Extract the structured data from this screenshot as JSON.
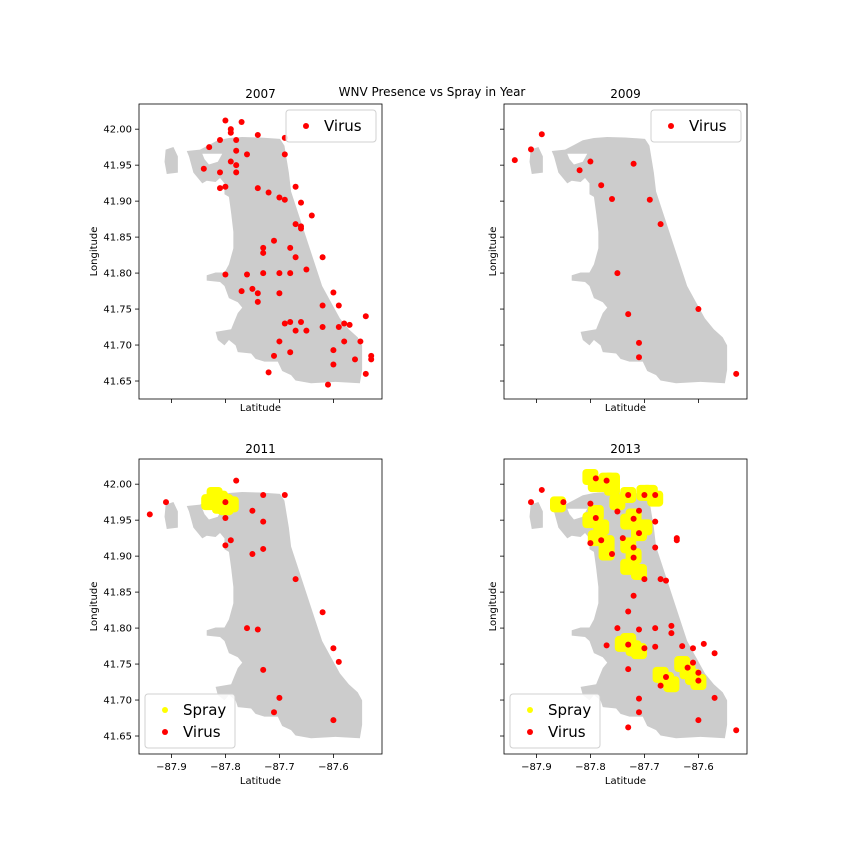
{
  "figure_title": "WNV Presence vs Spray in Year",
  "colors": {
    "land": "#cccccc",
    "virus": "#ff0000",
    "spray": "#ffff00",
    "frame": "#000000"
  },
  "chart_data": [
    {
      "type": "scatter",
      "title": "2007",
      "xlabel": "Latitude",
      "ylabel": "Longitude",
      "xlim": [
        -87.96,
        -87.51
      ],
      "ylim": [
        41.625,
        42.035
      ],
      "x_ticks": [],
      "y_ticks": [
        "42.00",
        "41.95",
        "41.90",
        "41.85",
        "41.80",
        "41.75",
        "41.70",
        "41.65"
      ],
      "legend": {
        "placement": "top-right",
        "entries": [
          "Virus"
        ]
      },
      "series": [
        {
          "name": "Virus",
          "color": "#ff0000",
          "points": [
            [
              -87.8,
              42.012
            ],
            [
              -87.77,
              42.01
            ],
            [
              -87.79,
              42.0
            ],
            [
              -87.79,
              41.995
            ],
            [
              -87.81,
              41.985
            ],
            [
              -87.83,
              41.975
            ],
            [
              -87.78,
              41.985
            ],
            [
              -87.74,
              41.992
            ],
            [
              -87.69,
              41.988
            ],
            [
              -87.78,
              41.97
            ],
            [
              -87.76,
              41.965
            ],
            [
              -87.69,
              41.965
            ],
            [
              -87.79,
              41.955
            ],
            [
              -87.78,
              41.95
            ],
            [
              -87.84,
              41.945
            ],
            [
              -87.81,
              41.94
            ],
            [
              -87.78,
              41.94
            ],
            [
              -87.8,
              41.92
            ],
            [
              -87.81,
              41.918
            ],
            [
              -87.67,
              41.92
            ],
            [
              -87.74,
              41.918
            ],
            [
              -87.72,
              41.912
            ],
            [
              -87.7,
              41.905
            ],
            [
              -87.69,
              41.902
            ],
            [
              -87.66,
              41.898
            ],
            [
              -87.64,
              41.88
            ],
            [
              -87.67,
              41.868
            ],
            [
              -87.66,
              41.865
            ],
            [
              -87.66,
              41.862
            ],
            [
              -87.71,
              41.845
            ],
            [
              -87.73,
              41.835
            ],
            [
              -87.73,
              41.828
            ],
            [
              -87.68,
              41.835
            ],
            [
              -87.67,
              41.822
            ],
            [
              -87.62,
              41.822
            ],
            [
              -87.65,
              41.805
            ],
            [
              -87.68,
              41.8
            ],
            [
              -87.7,
              41.8
            ],
            [
              -87.73,
              41.8
            ],
            [
              -87.76,
              41.798
            ],
            [
              -87.8,
              41.798
            ],
            [
              -87.75,
              41.778
            ],
            [
              -87.74,
              41.772
            ],
            [
              -87.7,
              41.772
            ],
            [
              -87.77,
              41.775
            ],
            [
              -87.74,
              41.76
            ],
            [
              -87.6,
              41.773
            ],
            [
              -87.62,
              41.755
            ],
            [
              -87.59,
              41.755
            ],
            [
              -87.54,
              41.74
            ],
            [
              -87.66,
              41.732
            ],
            [
              -87.68,
              41.732
            ],
            [
              -87.69,
              41.73
            ],
            [
              -87.62,
              41.725
            ],
            [
              -87.59,
              41.725
            ],
            [
              -87.58,
              41.73
            ],
            [
              -87.57,
              41.728
            ],
            [
              -87.67,
              41.72
            ],
            [
              -87.65,
              41.72
            ],
            [
              -87.55,
              41.705
            ],
            [
              -87.58,
              41.705
            ],
            [
              -87.7,
              41.705
            ],
            [
              -87.6,
              41.693
            ],
            [
              -87.68,
              41.69
            ],
            [
              -87.71,
              41.685
            ],
            [
              -87.53,
              41.685
            ],
            [
              -87.53,
              41.68
            ],
            [
              -87.56,
              41.68
            ],
            [
              -87.6,
              41.673
            ],
            [
              -87.72,
              41.662
            ],
            [
              -87.54,
              41.66
            ],
            [
              -87.61,
              41.645
            ]
          ]
        }
      ]
    },
    {
      "type": "scatter",
      "title": "2009",
      "xlabel": "Latitude",
      "ylabel": "Longitude",
      "xlim": [
        -87.96,
        -87.51
      ],
      "ylim": [
        41.625,
        42.035
      ],
      "x_ticks": [],
      "y_ticks": [],
      "legend": {
        "placement": "top-right",
        "entries": [
          "Virus"
        ]
      },
      "series": [
        {
          "name": "Virus",
          "color": "#ff0000",
          "points": [
            [
              -87.89,
              41.993
            ],
            [
              -87.91,
              41.972
            ],
            [
              -87.94,
              41.957
            ],
            [
              -87.8,
              41.955
            ],
            [
              -87.82,
              41.943
            ],
            [
              -87.72,
              41.952
            ],
            [
              -87.78,
              41.922
            ],
            [
              -87.76,
              41.903
            ],
            [
              -87.69,
              41.902
            ],
            [
              -87.67,
              41.868
            ],
            [
              -87.75,
              41.8
            ],
            [
              -87.73,
              41.743
            ],
            [
              -87.6,
              41.75
            ],
            [
              -87.71,
              41.703
            ],
            [
              -87.71,
              41.683
            ],
            [
              -87.53,
              41.66
            ]
          ]
        }
      ]
    },
    {
      "type": "scatter",
      "title": "2011",
      "xlabel": "Latitude",
      "ylabel": "Longitude",
      "xlim": [
        -87.96,
        -87.51
      ],
      "ylim": [
        41.625,
        42.035
      ],
      "x_ticks": [
        "−87.9",
        "−87.8",
        "−87.7",
        "−87.6"
      ],
      "y_ticks": [
        "42.00",
        "41.95",
        "41.90",
        "41.85",
        "41.80",
        "41.75",
        "41.70",
        "41.65"
      ],
      "legend": {
        "placement": "bottom-left",
        "entries": [
          "Spray",
          "Virus"
        ]
      },
      "series": [
        {
          "name": "Spray",
          "color": "#ffff00",
          "points": [
            [
              -87.82,
              41.985
            ],
            [
              -87.81,
              41.98
            ],
            [
              -87.8,
              41.975
            ],
            [
              -87.79,
              41.972
            ],
            [
              -87.8,
              41.968
            ],
            [
              -87.81,
              41.97
            ],
            [
              -87.83,
              41.975
            ]
          ]
        },
        {
          "name": "Virus",
          "color": "#ff0000",
          "points": [
            [
              -87.78,
              42.005
            ],
            [
              -87.94,
              41.958
            ],
            [
              -87.91,
              41.975
            ],
            [
              -87.8,
              41.975
            ],
            [
              -87.73,
              41.985
            ],
            [
              -87.69,
              41.985
            ],
            [
              -87.75,
              41.963
            ],
            [
              -87.8,
              41.953
            ],
            [
              -87.73,
              41.948
            ],
            [
              -87.79,
              41.922
            ],
            [
              -87.8,
              41.915
            ],
            [
              -87.73,
              41.91
            ],
            [
              -87.75,
              41.903
            ],
            [
              -87.67,
              41.868
            ],
            [
              -87.62,
              41.822
            ],
            [
              -87.76,
              41.8
            ],
            [
              -87.74,
              41.798
            ],
            [
              -87.6,
              41.772
            ],
            [
              -87.59,
              41.753
            ],
            [
              -87.73,
              41.742
            ],
            [
              -87.7,
              41.703
            ],
            [
              -87.71,
              41.683
            ],
            [
              -87.6,
              41.672
            ]
          ]
        }
      ]
    },
    {
      "type": "scatter",
      "title": "2013",
      "xlabel": "Latitude",
      "ylabel": "Longitude",
      "xlim": [
        -87.96,
        -87.51
      ],
      "ylim": [
        41.625,
        42.035
      ],
      "x_ticks": [
        "−87.9",
        "−87.8",
        "−87.7",
        "−87.6"
      ],
      "y_ticks": [],
      "legend": {
        "placement": "bottom-left",
        "entries": [
          "Spray",
          "Virus"
        ]
      },
      "series": [
        {
          "name": "Spray",
          "color": "#ffff00",
          "points": [
            [
              -87.8,
              42.01
            ],
            [
              -87.79,
              42.0
            ],
            [
              -87.78,
              42.0
            ],
            [
              -87.77,
              42.005
            ],
            [
              -87.76,
              42.005
            ],
            [
              -87.76,
              41.995
            ],
            [
              -87.7,
              41.988
            ],
            [
              -87.69,
              41.988
            ],
            [
              -87.68,
              41.98
            ],
            [
              -87.73,
              41.985
            ],
            [
              -87.75,
              41.975
            ],
            [
              -87.72,
              41.955
            ],
            [
              -87.73,
              41.948
            ],
            [
              -87.7,
              41.94
            ],
            [
              -87.71,
              41.932
            ],
            [
              -87.79,
              41.96
            ],
            [
              -87.8,
              41.95
            ],
            [
              -87.78,
              41.94
            ],
            [
              -87.79,
              41.925
            ],
            [
              -87.77,
              41.918
            ],
            [
              -87.77,
              41.905
            ],
            [
              -87.73,
              41.915
            ],
            [
              -87.72,
              41.9
            ],
            [
              -87.73,
              41.885
            ],
            [
              -87.71,
              41.878
            ],
            [
              -87.86,
              41.972
            ],
            [
              -87.74,
              41.778
            ],
            [
              -87.72,
              41.772
            ],
            [
              -87.71,
              41.768
            ],
            [
              -87.73,
              41.782
            ],
            [
              -87.67,
              41.735
            ],
            [
              -87.66,
              41.728
            ],
            [
              -87.65,
              41.722
            ],
            [
              -87.63,
              41.75
            ],
            [
              -87.62,
              41.74
            ],
            [
              -87.61,
              41.732
            ],
            [
              -87.6,
              41.725
            ]
          ]
        },
        {
          "name": "Virus",
          "color": "#ff0000",
          "points": [
            [
              -87.79,
              42.008
            ],
            [
              -87.77,
              42.005
            ],
            [
              -87.89,
              41.992
            ],
            [
              -87.91,
              41.975
            ],
            [
              -87.85,
              41.975
            ],
            [
              -87.8,
              41.973
            ],
            [
              -87.73,
              41.985
            ],
            [
              -87.7,
              41.985
            ],
            [
              -87.68,
              41.985
            ],
            [
              -87.75,
              41.962
            ],
            [
              -87.71,
              41.963
            ],
            [
              -87.79,
              41.953
            ],
            [
              -87.72,
              41.952
            ],
            [
              -87.68,
              41.948
            ],
            [
              -87.71,
              41.932
            ],
            [
              -87.78,
              41.922
            ],
            [
              -87.74,
              41.925
            ],
            [
              -87.8,
              41.918
            ],
            [
              -87.72,
              41.912
            ],
            [
              -87.68,
              41.912
            ],
            [
              -87.64,
              41.925
            ],
            [
              -87.64,
              41.922
            ],
            [
              -87.76,
              41.903
            ],
            [
              -87.72,
              41.898
            ],
            [
              -87.7,
              41.868
            ],
            [
              -87.67,
              41.868
            ],
            [
              -87.66,
              41.866
            ],
            [
              -87.72,
              41.845
            ],
            [
              -87.73,
              41.823
            ],
            [
              -87.65,
              41.803
            ],
            [
              -87.68,
              41.8
            ],
            [
              -87.71,
              41.798
            ],
            [
              -87.75,
              41.8
            ],
            [
              -87.77,
              41.776
            ],
            [
              -87.73,
              41.777
            ],
            [
              -87.68,
              41.774
            ],
            [
              -87.7,
              41.772
            ],
            [
              -87.63,
              41.775
            ],
            [
              -87.61,
              41.772
            ],
            [
              -87.59,
              41.778
            ],
            [
              -87.57,
              41.765
            ],
            [
              -87.65,
              41.793
            ],
            [
              -87.73,
              41.743
            ],
            [
              -87.61,
              41.752
            ],
            [
              -87.62,
              41.745
            ],
            [
              -87.6,
              41.738
            ],
            [
              -87.66,
              41.732
            ],
            [
              -87.67,
              41.72
            ],
            [
              -87.6,
              41.727
            ],
            [
              -87.71,
              41.702
            ],
            [
              -87.57,
              41.703
            ],
            [
              -87.71,
              41.683
            ],
            [
              -87.73,
              41.662
            ],
            [
              -87.6,
              41.672
            ],
            [
              -87.53,
              41.658
            ]
          ]
        }
      ]
    }
  ]
}
